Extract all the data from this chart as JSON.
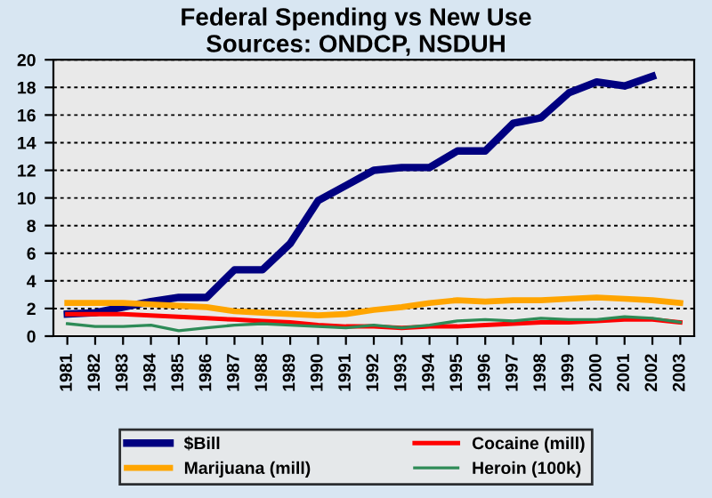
{
  "chart_data": {
    "type": "line",
    "title": "Federal Spending vs New Use",
    "subtitle": "Sources: ONDCP, NSDUH",
    "categories": [
      "1981",
      "1982",
      "1983",
      "1984",
      "1985",
      "1986",
      "1987",
      "1988",
      "1989",
      "1990",
      "1991",
      "1992",
      "1993",
      "1994",
      "1995",
      "1996",
      "1997",
      "1998",
      "1999",
      "2000",
      "2001",
      "2002",
      "2003"
    ],
    "series": [
      {
        "name": "$Bill",
        "color": "#000080",
        "values": [
          1.6,
          1.7,
          2.1,
          2.5,
          2.8,
          2.8,
          4.8,
          4.8,
          6.7,
          9.8,
          10.9,
          12.0,
          12.2,
          12.2,
          13.4,
          13.4,
          15.4,
          15.8,
          17.6,
          18.4,
          18.1,
          18.8,
          null
        ]
      },
      {
        "name": "Marijuana (mill)",
        "color": "#ffa500",
        "values": [
          2.4,
          2.4,
          2.4,
          2.3,
          2.2,
          2.1,
          1.8,
          1.7,
          1.6,
          1.5,
          1.6,
          1.9,
          2.1,
          2.4,
          2.6,
          2.5,
          2.6,
          2.6,
          2.7,
          2.8,
          2.7,
          2.6,
          2.4
        ]
      },
      {
        "name": "Cocaine (mill)",
        "color": "#ff0000",
        "values": [
          1.6,
          1.6,
          1.6,
          1.5,
          1.4,
          1.3,
          1.2,
          1.1,
          1.0,
          0.8,
          0.7,
          0.7,
          0.6,
          0.7,
          0.7,
          0.8,
          0.9,
          1.0,
          1.0,
          1.1,
          1.2,
          1.2,
          1.0
        ]
      },
      {
        "name": "Heroin (100k)",
        "color": "#2e8b57",
        "values": [
          0.9,
          0.7,
          0.7,
          0.8,
          0.4,
          0.6,
          0.8,
          0.9,
          0.8,
          0.7,
          0.6,
          0.8,
          0.6,
          0.8,
          1.1,
          1.2,
          1.1,
          1.3,
          1.2,
          1.2,
          1.4,
          1.3,
          1.0
        ]
      }
    ],
    "ylim": [
      0,
      20
    ],
    "yticks": [
      0,
      2,
      4,
      6,
      8,
      10,
      12,
      14,
      16,
      18,
      20
    ],
    "grid": "y",
    "legend": "bottom",
    "marker": "none",
    "line_style": "solid"
  }
}
